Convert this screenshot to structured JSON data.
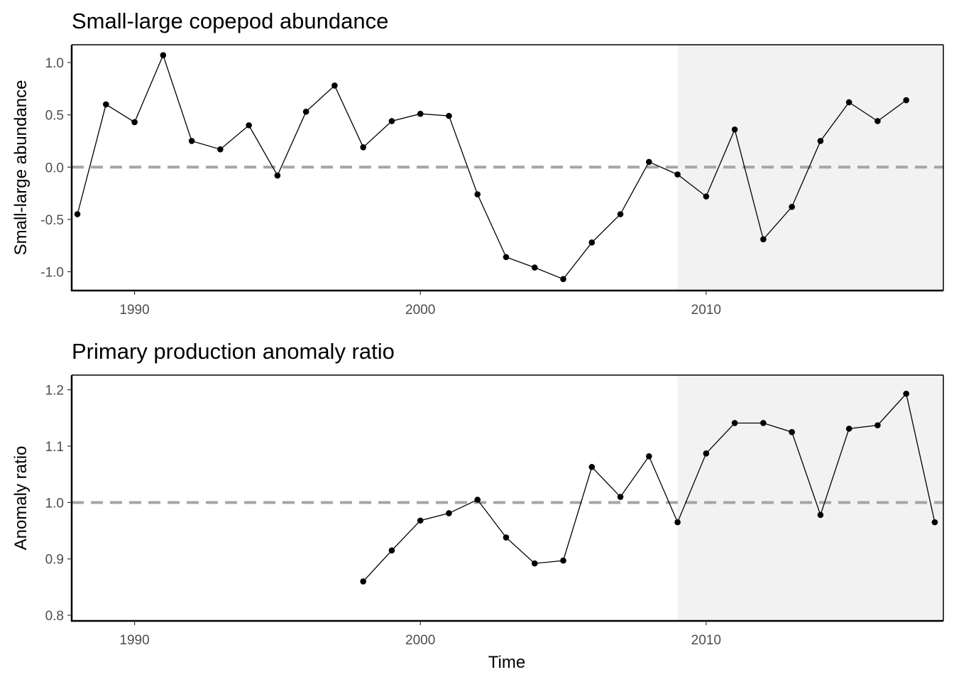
{
  "chart_data": [
    {
      "type": "line",
      "title": "Small-large copepod abundance",
      "xlabel": "",
      "ylabel": "Small-large abundance",
      "xlim": [
        1987.8,
        2018.3
      ],
      "ylim": [
        -1.18,
        1.17
      ],
      "xticks": [
        "1990",
        "2000",
        "2010"
      ],
      "yticks": [
        "-1.0",
        "-0.5",
        "0.0",
        "0.5",
        "1.0"
      ],
      "reference_line": 0.0,
      "shaded_region_start": 2009,
      "grid": false,
      "x": [
        1988,
        1989,
        1990,
        1991,
        1992,
        1993,
        1994,
        1995,
        1996,
        1997,
        1998,
        1999,
        2000,
        2001,
        2002,
        2003,
        2004,
        2005,
        2006,
        2007,
        2008,
        2009,
        2010,
        2011,
        2012,
        2013,
        2014,
        2015,
        2016,
        2017
      ],
      "values": [
        -0.45,
        0.6,
        0.43,
        1.07,
        0.25,
        0.17,
        0.4,
        -0.08,
        0.53,
        0.78,
        0.19,
        0.44,
        0.51,
        0.49,
        -0.26,
        -0.86,
        -0.96,
        -1.07,
        -0.72,
        -0.45,
        0.05,
        -0.07,
        -0.28,
        0.36,
        -0.69,
        -0.38,
        0.25,
        0.62,
        0.44,
        0.64
      ]
    },
    {
      "type": "line",
      "title": "Primary production anomaly ratio",
      "xlabel": "Time",
      "ylabel": "Anomaly ratio",
      "xlim": [
        1987.8,
        2018.3
      ],
      "ylim": [
        0.79,
        1.226
      ],
      "xticks": [
        "1990",
        "2000",
        "2010"
      ],
      "yticks": [
        "0.8",
        "0.9",
        "1.0",
        "1.1",
        "1.2"
      ],
      "reference_line": 1.0,
      "shaded_region_start": 2009,
      "grid": false,
      "x": [
        1998,
        1999,
        2000,
        2001,
        2002,
        2003,
        2004,
        2005,
        2006,
        2007,
        2008,
        2009,
        2010,
        2011,
        2012,
        2013,
        2014,
        2015,
        2016,
        2017,
        2018
      ],
      "values": [
        0.86,
        0.915,
        0.968,
        0.981,
        1.005,
        0.938,
        0.892,
        0.897,
        1.063,
        1.01,
        1.082,
        0.965,
        1.087,
        1.141,
        1.141,
        1.125,
        0.978,
        1.131,
        1.137,
        1.193,
        0.965
      ]
    }
  ],
  "colors": {
    "line": "#000000",
    "point": "#000000",
    "reference": "#a6a6a6",
    "shade": "#f2f2f2",
    "frame": "#000000"
  }
}
